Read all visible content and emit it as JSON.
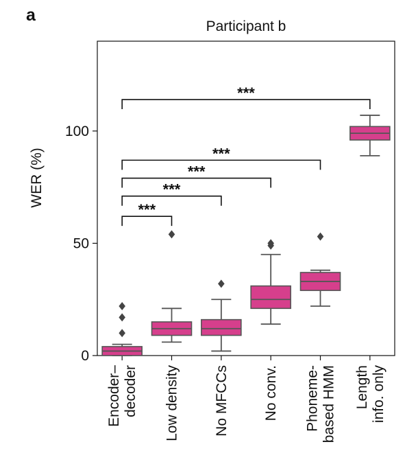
{
  "panel_label": "a",
  "chart_data": {
    "type": "box",
    "title": "Participant b",
    "xlabel": "",
    "ylabel": "WER (%)",
    "ylim": [
      0,
      140
    ],
    "yticks": [
      0,
      50,
      100
    ],
    "grid": false,
    "legend": "none",
    "box_color": "#d63f8c",
    "box_edge_color": "#555555",
    "categories": [
      "Encoder–\ndecoder",
      "Low density",
      "No MFCCs",
      "No conv.",
      "Phoneme-\nbased HMM",
      "Length\ninfo. only"
    ],
    "boxes": [
      {
        "whisker_low": 0,
        "q1": 0,
        "median": 2,
        "q3": 4,
        "whisker_high": 5,
        "outliers": [
          10,
          17,
          22
        ]
      },
      {
        "whisker_low": 6,
        "q1": 9,
        "median": 12,
        "q3": 15,
        "whisker_high": 21,
        "outliers": [
          54
        ]
      },
      {
        "whisker_low": 2,
        "q1": 9,
        "median": 12,
        "q3": 16,
        "whisker_high": 25,
        "outliers": [
          32
        ]
      },
      {
        "whisker_low": 14,
        "q1": 21,
        "median": 25,
        "q3": 31,
        "whisker_high": 45,
        "outliers": [
          49,
          50
        ]
      },
      {
        "whisker_low": 22,
        "q1": 29,
        "median": 33,
        "q3": 37,
        "whisker_high": 38,
        "outliers": [
          53
        ]
      },
      {
        "whisker_low": 89,
        "q1": 96,
        "median": 99,
        "q3": 102,
        "whisker_high": 107,
        "outliers": []
      }
    ],
    "significance": [
      {
        "from": 0,
        "to": 1,
        "y": 62,
        "label": "***"
      },
      {
        "from": 0,
        "to": 2,
        "y": 71,
        "label": "***"
      },
      {
        "from": 0,
        "to": 3,
        "y": 79,
        "label": "***"
      },
      {
        "from": 0,
        "to": 4,
        "y": 87,
        "label": "***"
      },
      {
        "from": 0,
        "to": 5,
        "y": 114,
        "label": "***"
      }
    ]
  }
}
